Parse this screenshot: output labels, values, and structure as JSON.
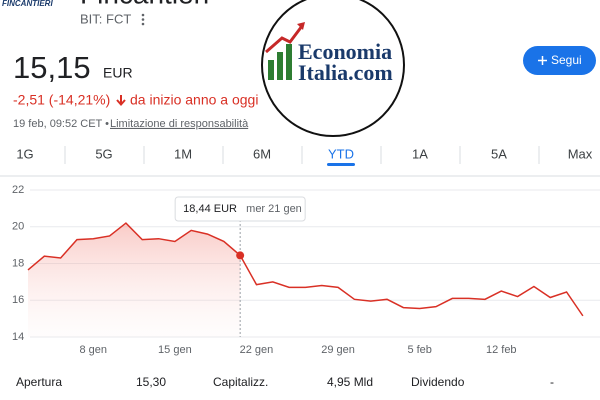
{
  "header": {
    "logo": "FINCANTIERI",
    "title": "Fincantieri",
    "ticker": "BIT: FCT",
    "price": "15,15",
    "currency": "EUR",
    "change": "-2,51 (-14,21%)",
    "change_period": "da inizio anno a oggi",
    "timestamp": "19 feb, 09:52 CET •",
    "disclaimer": "Limitazione di responsabilità",
    "follow_button": "Segui"
  },
  "watermark": {
    "line1": "Economia",
    "line2": "Italia.com"
  },
  "tabs": {
    "items": [
      "1G",
      "5G",
      "1M",
      "6M",
      "YTD",
      "1A",
      "5A",
      "Max"
    ],
    "selected": 4
  },
  "chart_data": {
    "type": "line",
    "color": "#d93025",
    "categories": [
      null,
      null,
      null,
      null,
      "8 gen",
      null,
      null,
      null,
      null,
      "15 gen",
      null,
      null,
      null,
      null,
      "22 gen",
      null,
      null,
      null,
      null,
      "29 gen",
      null,
      null,
      null,
      null,
      "5 feb",
      null,
      null,
      null,
      null,
      "12 feb",
      null,
      null,
      null,
      null,
      null
    ],
    "values": [
      17.65,
      18.4,
      18.3,
      19.3,
      19.35,
      19.5,
      20.2,
      19.3,
      19.35,
      19.2,
      19.8,
      19.6,
      19.2,
      18.44,
      16.85,
      17.0,
      16.7,
      16.7,
      16.8,
      16.7,
      16.05,
      15.95,
      16.05,
      15.6,
      15.55,
      15.65,
      16.1,
      16.1,
      16.05,
      16.5,
      16.2,
      16.75,
      16.15,
      16.45,
      15.15
    ],
    "value_labels": [
      null,
      null,
      null,
      null,
      null,
      null,
      null,
      null,
      null,
      null,
      null,
      null,
      null,
      "18,44 EUR",
      null,
      null,
      null,
      null,
      null,
      null,
      null,
      null,
      null,
      null,
      null,
      null,
      null,
      null,
      null,
      null,
      null,
      null,
      null,
      null,
      null
    ],
    "tooltip_date": "mer 21 gen",
    "ylim": [
      14,
      22
    ],
    "yticks": [
      14,
      16,
      18,
      20,
      22
    ],
    "grid": true
  },
  "stats": [
    {
      "label": "Apertura",
      "value": "15,30"
    },
    {
      "label": "Capitalizz.",
      "value": "4,95 Mld"
    },
    {
      "label": "Dividendo",
      "value": "-"
    }
  ]
}
